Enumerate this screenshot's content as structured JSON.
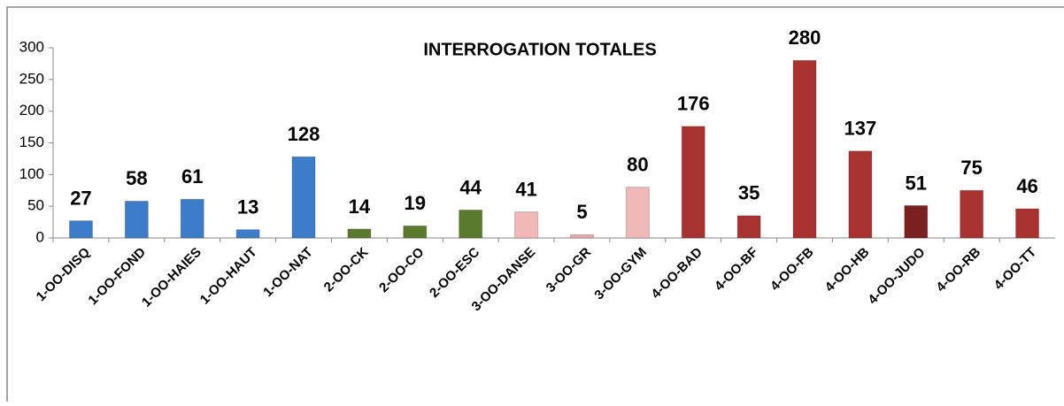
{
  "chart_data": {
    "type": "bar",
    "title": "INTERROGATION TOTALES",
    "categories": [
      "1-OO-DISQ",
      "1-OO-FOND",
      "1-OO-HAIES",
      "1-OO-HAUT",
      "1-OO-NAT",
      "2-OO-CK",
      "2-OO-CO",
      "2-OO-ESC",
      "3-OO-DANSE",
      "3-OO-GR",
      "3-OO-GYM",
      "4-OO-BAD",
      "4-OO-BF",
      "4-OO-FB",
      "4-OO-HB",
      "4-OO-JUDO",
      "4-OO-RB",
      "4-OO-TT"
    ],
    "values": [
      27,
      58,
      61,
      13,
      128,
      14,
      19,
      44,
      41,
      5,
      80,
      176,
      35,
      280,
      137,
      51,
      75,
      46
    ],
    "colors": [
      "#3d7cc9",
      "#3d7cc9",
      "#3d7cc9",
      "#3d7cc9",
      "#3d7cc9",
      "#5b7a2e",
      "#5b7a2e",
      "#5b7a2e",
      "#f0b8b8",
      "#e8a8a8",
      "#f0b8b8",
      "#a83232",
      "#a83232",
      "#a83232",
      "#a83232",
      "#7a2020",
      "#a83232",
      "#a83232"
    ],
    "ylim": [
      0,
      300
    ],
    "yticks": [
      0,
      50,
      100,
      150,
      200,
      250,
      300
    ]
  }
}
